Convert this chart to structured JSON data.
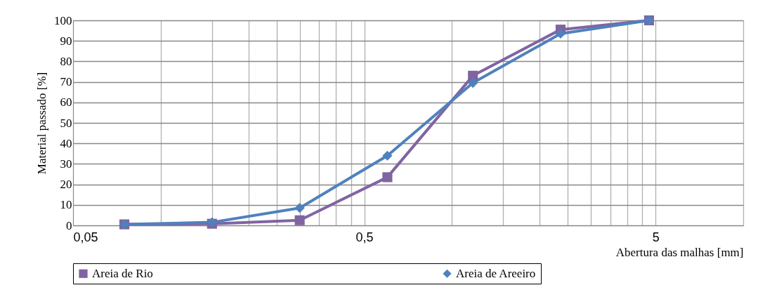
{
  "chart_data": {
    "type": "line",
    "xlabel": "Abertura das malhas [mm]",
    "ylabel": "Material passado [%]",
    "log": "x",
    "x": [
      0.075,
      0.15,
      0.3,
      0.6,
      1.18,
      2.36,
      4.75
    ],
    "series": [
      {
        "name": "Areia de Rio",
        "color": "#8064a2",
        "marker": "square",
        "values": [
          0.5,
          0.8,
          2.5,
          23.5,
          73,
          95.5,
          100
        ]
      },
      {
        "name": "Areia de Areeiro",
        "color": "#4f81bd",
        "marker": "diamond",
        "values": [
          0.5,
          1.5,
          8.5,
          34,
          69.5,
          93.5,
          100
        ]
      }
    ],
    "xlim": [
      0.05,
      10
    ],
    "xticks": [
      {
        "value": 0.05,
        "label": "0,05"
      },
      {
        "value": 0.1,
        "label": null
      },
      {
        "value": 0.15,
        "label": null
      },
      {
        "value": 0.2,
        "label": null
      },
      {
        "value": 0.25,
        "label": null
      },
      {
        "value": 0.3,
        "label": null
      },
      {
        "value": 0.35,
        "label": null
      },
      {
        "value": 0.4,
        "label": null
      },
      {
        "value": 0.45,
        "label": null
      },
      {
        "value": 0.5,
        "label": "0,5"
      },
      {
        "value": 1,
        "label": null
      },
      {
        "value": 1.5,
        "label": null
      },
      {
        "value": 2,
        "label": null
      },
      {
        "value": 2.5,
        "label": null
      },
      {
        "value": 3,
        "label": null
      },
      {
        "value": 3.5,
        "label": null
      },
      {
        "value": 4,
        "label": null
      },
      {
        "value": 4.5,
        "label": null
      },
      5,
      {
        "value": 10,
        "label": null
      }
    ],
    "ylim": [
      0,
      100
    ],
    "yticks": [
      0,
      10,
      20,
      30,
      40,
      50,
      60,
      70,
      80,
      90,
      100
    ],
    "grid": true,
    "legend": "bottom",
    "line_style": "solid"
  }
}
